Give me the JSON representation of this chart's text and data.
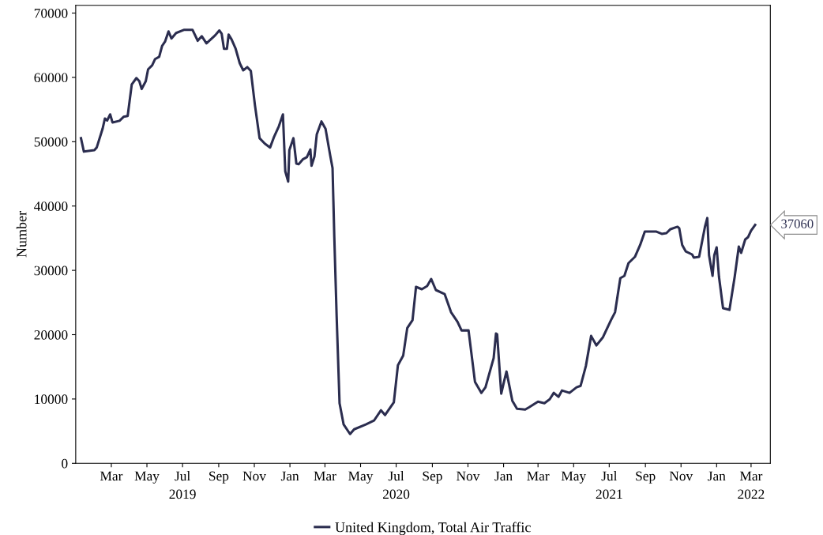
{
  "chart_data": {
    "type": "line",
    "ylabel": "Number",
    "x": [
      "2019-01-08",
      "2019-01-13",
      "2019-01-31",
      "2019-02-04",
      "2019-02-14",
      "2019-02-18",
      "2019-02-22",
      "2019-02-27",
      "2019-03-03",
      "2019-03-15",
      "2019-03-22",
      "2019-03-29",
      "2019-04-05",
      "2019-04-13",
      "2019-04-18",
      "2019-04-22",
      "2019-04-29",
      "2019-05-03",
      "2019-05-10",
      "2019-05-15",
      "2019-05-22",
      "2019-05-27",
      "2019-06-01",
      "2019-06-07",
      "2019-06-12",
      "2019-06-20",
      "2019-07-04",
      "2019-07-18",
      "2019-07-27",
      "2019-08-03",
      "2019-08-11",
      "2019-08-26",
      "2019-09-02",
      "2019-09-06",
      "2019-09-10",
      "2019-09-15",
      "2019-09-18",
      "2019-09-23",
      "2019-09-30",
      "2019-10-07",
      "2019-10-13",
      "2019-10-20",
      "2019-10-26",
      "2019-11-02",
      "2019-11-10",
      "2019-11-19",
      "2019-11-28",
      "2019-12-05",
      "2019-12-13",
      "2019-12-20",
      "2019-12-24",
      "2019-12-29",
      "2019-12-31",
      "2020-01-07",
      "2020-01-12",
      "2020-01-16",
      "2020-01-23",
      "2020-01-30",
      "2020-02-05",
      "2020-02-07",
      "2020-02-12",
      "2020-02-16",
      "2020-02-24",
      "2020-03-02",
      "2020-03-10",
      "2020-03-14",
      "2020-03-17",
      "2020-03-21",
      "2020-03-26",
      "2020-04-02",
      "2020-04-13",
      "2020-04-20",
      "2020-05-10",
      "2020-05-24",
      "2020-06-05",
      "2020-06-12",
      "2020-06-27",
      "2020-07-04",
      "2020-07-13",
      "2020-07-20",
      "2020-07-29",
      "2020-08-04",
      "2020-08-14",
      "2020-08-23",
      "2020-08-30",
      "2020-09-07",
      "2020-09-22",
      "2020-10-03",
      "2020-10-14",
      "2020-10-21",
      "2020-11-02",
      "2020-11-13",
      "2020-11-24",
      "2020-12-01",
      "2020-12-15",
      "2020-12-19",
      "2020-12-21",
      "2020-12-28",
      "2021-01-02",
      "2021-01-06",
      "2021-01-16",
      "2021-01-24",
      "2021-02-07",
      "2021-02-14",
      "2021-03-01",
      "2021-03-12",
      "2021-03-21",
      "2021-03-28",
      "2021-04-05",
      "2021-04-11",
      "2021-04-24",
      "2021-05-06",
      "2021-05-13",
      "2021-05-22",
      "2021-05-31",
      "2021-06-09",
      "2021-06-20",
      "2021-07-04",
      "2021-07-11",
      "2021-07-20",
      "2021-07-27",
      "2021-08-03",
      "2021-08-14",
      "2021-08-23",
      "2021-08-31",
      "2021-09-19",
      "2021-09-29",
      "2021-10-07",
      "2021-10-14",
      "2021-10-26",
      "2021-10-29",
      "2021-11-03",
      "2021-11-09",
      "2021-11-20",
      "2021-11-23",
      "2021-12-02",
      "2021-12-12",
      "2021-12-16",
      "2021-12-19",
      "2021-12-25",
      "2021-12-28",
      "2022-01-01",
      "2022-01-05",
      "2022-01-12",
      "2022-01-23",
      "2022-02-01",
      "2022-02-08",
      "2022-02-12",
      "2022-02-19",
      "2022-02-24",
      "2022-03-01",
      "2022-03-08"
    ],
    "series": [
      {
        "name": "United Kingdom, Total Air Traffic",
        "color": "#2b2d4f",
        "values": [
          50550,
          48460,
          48700,
          49100,
          52000,
          53600,
          53300,
          54250,
          53000,
          53250,
          53870,
          54000,
          58900,
          59900,
          59400,
          58200,
          59400,
          61250,
          61870,
          62850,
          63200,
          64900,
          65560,
          67150,
          66050,
          66900,
          67400,
          67400,
          65700,
          66400,
          65300,
          66550,
          67300,
          66800,
          64450,
          64450,
          66650,
          65900,
          64450,
          62200,
          61100,
          61600,
          61000,
          55700,
          50550,
          49700,
          49100,
          50800,
          52400,
          54250,
          45400,
          43800,
          48700,
          50550,
          46600,
          46500,
          47250,
          47600,
          48800,
          46250,
          47700,
          51150,
          53150,
          52000,
          47850,
          45900,
          35200,
          22900,
          9350,
          6030,
          4550,
          5290,
          6030,
          6640,
          8240,
          7500,
          9470,
          15250,
          16730,
          21030,
          22260,
          27430,
          27060,
          27550,
          28660,
          26940,
          26320,
          23490,
          22020,
          20660,
          20660,
          12670,
          10950,
          11810,
          16360,
          20170,
          20050,
          10820,
          12790,
          14270,
          9720,
          8490,
          8360,
          8730,
          9590,
          9350,
          9960,
          10950,
          10330,
          11320,
          10950,
          11810,
          12050,
          15130,
          19800,
          18330,
          19560,
          22260,
          23490,
          28780,
          29150,
          31120,
          32100,
          33950,
          36040,
          36040,
          35670,
          35790,
          36410,
          36780,
          36530,
          33950,
          32960,
          32470,
          31980,
          32100,
          36780,
          38130,
          32350,
          29150,
          32350,
          33580,
          29030,
          24110,
          23860,
          29030,
          33700,
          32720,
          34810,
          35180,
          36160,
          37060
        ]
      }
    ],
    "annotations": [
      {
        "text": "37060",
        "x": "2022-03-08",
        "y": 37060
      }
    ],
    "xlim": [
      "2018-12-30",
      "2022-04-03"
    ],
    "xticks": [
      {
        "value": "2019-03-01",
        "label": "Mar"
      },
      {
        "value": "2019-05-01",
        "label": "May"
      },
      {
        "value": "2019-07-01",
        "label": "Jul\n2019"
      },
      {
        "value": "2019-09-01",
        "label": "Sep"
      },
      {
        "value": "2019-11-01",
        "label": "Nov"
      },
      {
        "value": "2020-01-01",
        "label": "Jan"
      },
      {
        "value": "2020-03-01",
        "label": "Mar"
      },
      {
        "value": "2020-05-01",
        "label": "May"
      },
      {
        "value": "2020-07-01",
        "label": "Jul\n2020"
      },
      {
        "value": "2020-09-01",
        "label": "Sep"
      },
      {
        "value": "2020-11-01",
        "label": "Nov"
      },
      {
        "value": "2021-01-01",
        "label": "Jan"
      },
      {
        "value": "2021-03-01",
        "label": "Mar"
      },
      {
        "value": "2021-05-01",
        "label": "May"
      },
      {
        "value": "2021-07-01",
        "label": "Jul\n2021"
      },
      {
        "value": "2021-09-01",
        "label": "Sep"
      },
      {
        "value": "2021-11-01",
        "label": "Nov"
      },
      {
        "value": "2022-01-01",
        "label": "Jan"
      },
      {
        "value": "2022-03-01",
        "label": "Mar\n2022"
      }
    ],
    "ylim": [
      0,
      71200
    ],
    "yticks": [
      0,
      10000,
      20000,
      30000,
      40000,
      50000,
      60000,
      70000
    ],
    "grid": false,
    "legend": "bottom",
    "marker": "none",
    "line_style": "solid"
  }
}
